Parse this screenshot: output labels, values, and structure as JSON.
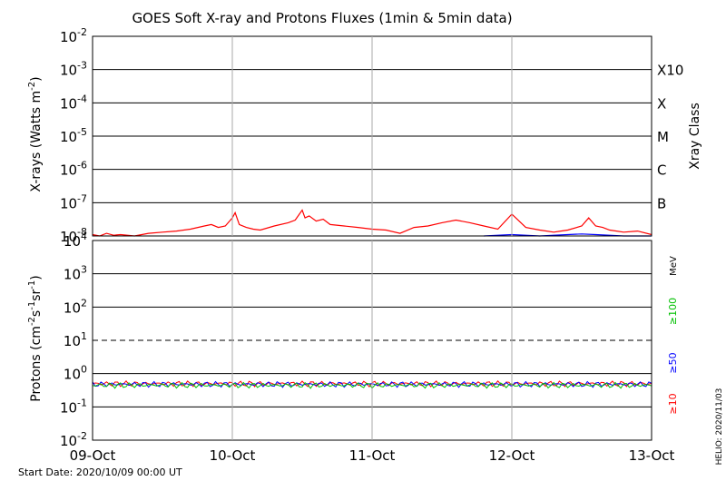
{
  "chart_data": [
    {
      "type": "line",
      "title": "GOES Soft X-ray and Protons Fluxes   (1min & 5min data)",
      "ylabel_base": "X-rays (Watts m",
      "ylabel_sup": "-2",
      "ylabel_close": ")",
      "right_axis_label": "Xray Class",
      "yscale": "log",
      "ylim": [
        1e-08,
        0.01
      ],
      "y_ticks": [
        {
          "value": 1e-08,
          "base": "10",
          "exp": "-8"
        },
        {
          "value": 1e-07,
          "base": "10",
          "exp": "-7"
        },
        {
          "value": 1e-06,
          "base": "10",
          "exp": "-6"
        },
        {
          "value": 1e-05,
          "base": "10",
          "exp": "-5"
        },
        {
          "value": 0.0001,
          "base": "10",
          "exp": "-4"
        },
        {
          "value": 0.001,
          "base": "10",
          "exp": "-3"
        },
        {
          "value": 0.01,
          "base": "10",
          "exp": "-2"
        }
      ],
      "class_labels": [
        {
          "value": 1e-07,
          "label": "B"
        },
        {
          "value": 1e-06,
          "label": "C"
        },
        {
          "value": 1e-05,
          "label": "M"
        },
        {
          "value": 0.0001,
          "label": "X"
        },
        {
          "value": 0.001,
          "label": "X10"
        }
      ],
      "series": [
        {
          "color": "#ff0000",
          "x": [
            0,
            0.05,
            0.1,
            0.15,
            0.2,
            0.3,
            0.4,
            0.5,
            0.6,
            0.7,
            0.8,
            0.85,
            0.9,
            0.95,
            1.0,
            1.02,
            1.05,
            1.1,
            1.15,
            1.2,
            1.3,
            1.4,
            1.45,
            1.5,
            1.52,
            1.55,
            1.6,
            1.65,
            1.7,
            1.8,
            1.9,
            2.0,
            2.1,
            2.2,
            2.3,
            2.4,
            2.5,
            2.6,
            2.7,
            2.8,
            2.9,
            3.0,
            3.1,
            3.2,
            3.3,
            3.4,
            3.5,
            3.55,
            3.6,
            3.65,
            3.7,
            3.8,
            3.9,
            4.0
          ],
          "y": [
            1.1e-08,
            1e-08,
            1.2e-08,
            1.05e-08,
            1.1e-08,
            1e-08,
            1.2e-08,
            1.3e-08,
            1.4e-08,
            1.6e-08,
            2e-08,
            2.2e-08,
            1.8e-08,
            2e-08,
            3.5e-08,
            5e-08,
            2.2e-08,
            1.8e-08,
            1.6e-08,
            1.5e-08,
            2e-08,
            2.5e-08,
            3e-08,
            6e-08,
            3.5e-08,
            4e-08,
            2.8e-08,
            3.2e-08,
            2.2e-08,
            2e-08,
            1.8e-08,
            1.6e-08,
            1.5e-08,
            1.2e-08,
            1.8e-08,
            2e-08,
            2.5e-08,
            3e-08,
            2.5e-08,
            2e-08,
            1.6e-08,
            4.5e-08,
            1.8e-08,
            1.5e-08,
            1.3e-08,
            1.5e-08,
            2e-08,
            3.5e-08,
            2e-08,
            1.8e-08,
            1.5e-08,
            1.3e-08,
            1.4e-08,
            1.1e-08
          ]
        },
        {
          "color": "#0000ff",
          "x": [
            2.8,
            2.9,
            3.0,
            3.1,
            3.2,
            3.3,
            3.4,
            3.5,
            3.6,
            3.7,
            3.8,
            3.9,
            4.0
          ],
          "y": [
            1e-08,
            1.05e-08,
            1.1e-08,
            1.05e-08,
            1e-08,
            1.05e-08,
            1.1e-08,
            1.15e-08,
            1.1e-08,
            1.05e-08,
            1e-08,
            1e-08,
            1e-08
          ]
        }
      ]
    },
    {
      "type": "line",
      "ylabel_base": "Protons (cm",
      "ylabel_sup1": "-2",
      "ylabel_mid": "s",
      "ylabel_sup2": "-1",
      "ylabel_mid2": "sr",
      "ylabel_sup3": "-1",
      "ylabel_close": ")",
      "yscale": "log",
      "ylim": [
        0.01,
        10000
      ],
      "y_ticks": [
        {
          "value": 0.01,
          "base": "10",
          "exp": "-2"
        },
        {
          "value": 0.1,
          "base": "10",
          "exp": "-1"
        },
        {
          "value": 1,
          "base": "10",
          "exp": "0"
        },
        {
          "value": 10,
          "base": "10",
          "exp": "1"
        },
        {
          "value": 100,
          "base": "10",
          "exp": "2"
        },
        {
          "value": 1000,
          "base": "10",
          "exp": "3"
        },
        {
          "value": 10000,
          "base": "10",
          "exp": "4"
        }
      ],
      "threshold_dashed": 10,
      "unit_label": "MeV",
      "energy_labels": [
        {
          "label": "≥100",
          "color": "#00c000"
        },
        {
          "label": "≥50",
          "color": "#0000ff"
        },
        {
          "label": "≥10",
          "color": "#ff0000"
        }
      ],
      "series": [
        {
          "name": "≥10",
          "color": "#ff0000",
          "level": 0.5
        },
        {
          "name": "≥50",
          "color": "#0000ff",
          "level": 0.48
        },
        {
          "name": "≥100",
          "color": "#00c000",
          "level": 0.45
        }
      ]
    }
  ],
  "x_axis": {
    "range": [
      0,
      4
    ],
    "ticks": [
      {
        "value": 0,
        "label": "09-Oct"
      },
      {
        "value": 1,
        "label": "10-Oct"
      },
      {
        "value": 2,
        "label": "11-Oct"
      },
      {
        "value": 3,
        "label": "12-Oct"
      },
      {
        "value": 4,
        "label": "13-Oct"
      }
    ]
  },
  "footer": {
    "start_date": "Start Date: 2020/10/09 00:00 UT",
    "credit": "HELIO: 2020/11/03"
  }
}
